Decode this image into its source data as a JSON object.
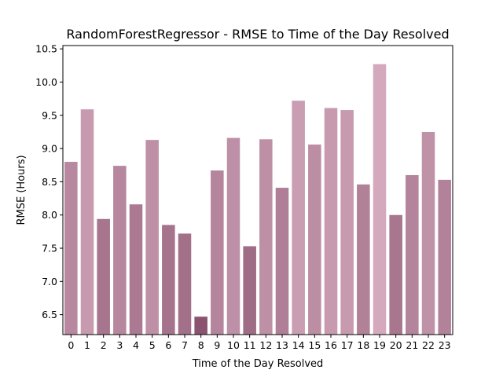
{
  "chart_data": {
    "type": "bar",
    "title": "RandomForestRegressor - RMSE to Time of the Day Resolved",
    "xlabel": "Time of the Day Resolved",
    "ylabel": "RMSE (Hours)",
    "categories": [
      "0",
      "1",
      "2",
      "3",
      "4",
      "5",
      "6",
      "7",
      "8",
      "9",
      "10",
      "11",
      "12",
      "13",
      "14",
      "15",
      "16",
      "17",
      "18",
      "19",
      "20",
      "21",
      "22",
      "23"
    ],
    "values": [
      8.8,
      9.59,
      7.94,
      8.74,
      8.16,
      9.13,
      7.85,
      7.72,
      6.47,
      8.67,
      9.16,
      7.53,
      9.14,
      8.41,
      9.72,
      9.06,
      9.61,
      9.58,
      8.46,
      10.27,
      8.0,
      8.6,
      9.25,
      8.53
    ],
    "ylim": [
      6.2,
      10.55
    ],
    "yticks": [
      "6.5",
      "7.0",
      "7.5",
      "8.0",
      "8.5",
      "9.0",
      "9.5",
      "10.0",
      "10.5"
    ],
    "grid": false,
    "colormap": {
      "low": "#8a5470",
      "high": "#d4a9bd"
    }
  }
}
